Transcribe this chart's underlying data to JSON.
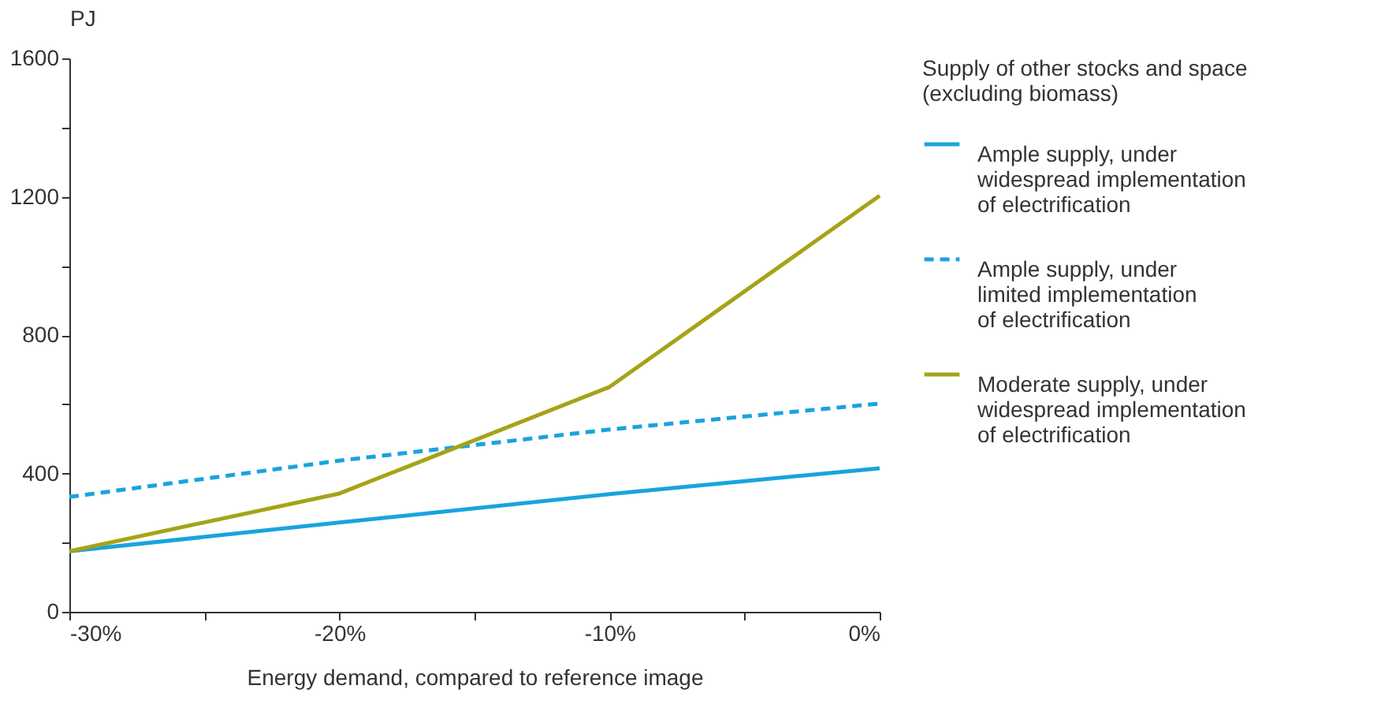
{
  "chart_data": {
    "type": "line",
    "xlabel": "Energy demand, compared to reference image",
    "ylabel": "PJ",
    "legend_title": "Supply of other stocks and space\n(excluding biomass)",
    "x": [
      -30,
      -20,
      -10,
      0
    ],
    "series": [
      {
        "name": "Ample supply, under\nwidespread implementation\nof electrification",
        "color": "#1aa3de",
        "line_style": "solid",
        "values": [
          175,
          258,
          340,
          415
        ]
      },
      {
        "name": "Ample supply, under\nlimited implementation\nof electrification",
        "color": "#1aa3de",
        "line_style": "dashed",
        "values": [
          332,
          437,
          527,
          602
        ]
      },
      {
        "name": "Moderate supply, under\nwidespread implementation\nof electrification",
        "color": "#a5a318",
        "line_style": "solid",
        "values": [
          175,
          342,
          650,
          1203
        ]
      }
    ],
    "xlim": [
      -30,
      0
    ],
    "ylim": [
      0,
      1600
    ],
    "xticks": [
      {
        "value": -30,
        "label": "-30%"
      },
      {
        "value": -25,
        "label": null
      },
      {
        "value": -20,
        "label": "-20%"
      },
      {
        "value": -15,
        "label": null
      },
      {
        "value": -10,
        "label": "-10%"
      },
      {
        "value": -5,
        "label": null
      },
      {
        "value": 0,
        "label": "0%"
      }
    ],
    "yticks": [
      0,
      {
        "value": 200,
        "label": null
      },
      400,
      {
        "value": 600,
        "label": null
      },
      800,
      {
        "value": 1000,
        "label": null
      },
      1200,
      {
        "value": 1400,
        "label": null
      },
      1600
    ],
    "grid": false,
    "legend": "right",
    "marker": "none"
  }
}
